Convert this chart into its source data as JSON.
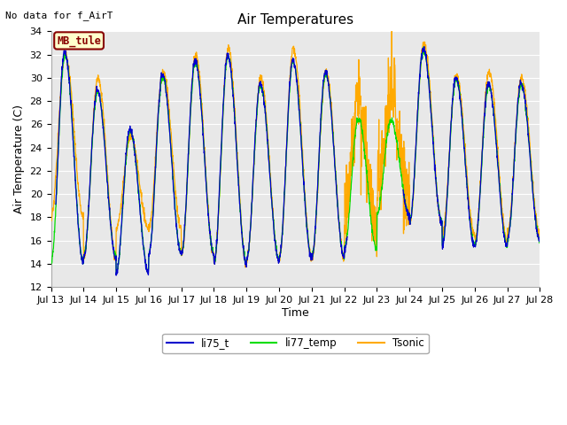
{
  "title": "Air Temperatures",
  "ylabel": "Air Temperature (C)",
  "xlabel": "Time",
  "no_data_text": "No data for f_AirT",
  "station_label": "MB_tule",
  "ylim": [
    12,
    34
  ],
  "yticks": [
    12,
    14,
    16,
    18,
    20,
    22,
    24,
    26,
    28,
    30,
    32,
    34
  ],
  "xtick_labels": [
    "Jul 13",
    "Jul 14",
    "Jul 15",
    "Jul 16",
    "Jul 17",
    "Jul 18",
    "Jul 19",
    "Jul 20",
    "Jul 21",
    "Jul 22",
    "Jul 23",
    "Jul 24",
    "Jul 25",
    "Jul 26",
    "Jul 27",
    "Jul 28"
  ],
  "colors": {
    "li75_t": "#0000cc",
    "li77_temp": "#00dd00",
    "Tsonic": "#ffaa00"
  },
  "bg_color": "#e8e8e8",
  "line_color": "#ffffff",
  "title_fontsize": 11,
  "label_fontsize": 9,
  "tick_fontsize": 8
}
